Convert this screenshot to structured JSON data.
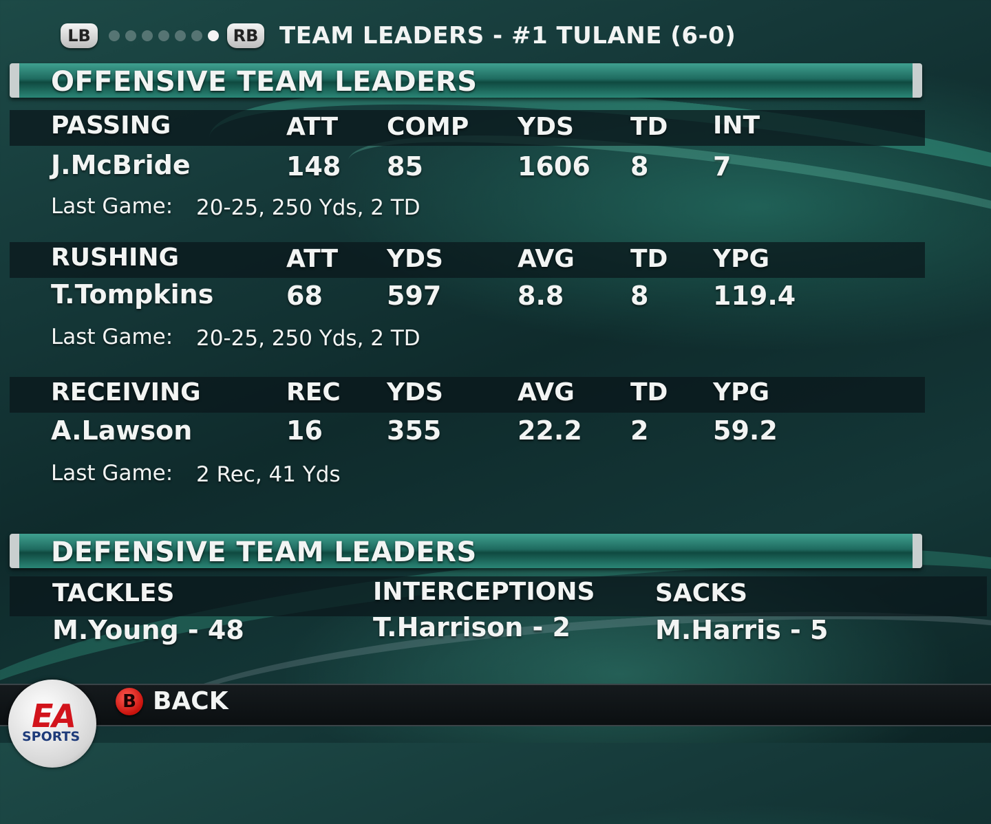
{
  "header": {
    "left_bumper": "LB",
    "right_bumper": "RB",
    "page_dots": 7,
    "active_dot": 7,
    "title": "TEAM LEADERS - #1 TULANE (6-0)"
  },
  "offense": {
    "title": "OFFENSIVE TEAM LEADERS",
    "passing": {
      "category": "PASSING",
      "columns": [
        "ATT",
        "COMP",
        "YDS",
        "TD",
        "INT"
      ],
      "player": "J.McBride",
      "values": [
        "148",
        "85",
        "1606",
        "8",
        "7"
      ],
      "last_label": "Last Game:",
      "last_value": "20-25, 250 Yds, 2 TD"
    },
    "rushing": {
      "category": "RUSHING",
      "columns": [
        "ATT",
        "YDS",
        "AVG",
        "TD",
        "YPG"
      ],
      "player": "T.Tompkins",
      "values": [
        "68",
        "597",
        "8.8",
        "8",
        "119.4"
      ],
      "last_label": "Last Game:",
      "last_value": "20-25, 250 Yds, 2 TD"
    },
    "receiving": {
      "category": "RECEIVING",
      "columns": [
        "REC",
        "YDS",
        "AVG",
        "TD",
        "YPG"
      ],
      "player": "A.Lawson",
      "values": [
        "16",
        "355",
        "22.2",
        "2",
        "59.2"
      ],
      "last_label": "Last Game:",
      "last_value": "2 Rec, 41 Yds"
    }
  },
  "defense": {
    "title": "DEFENSIVE TEAM LEADERS",
    "tackles": {
      "label": "TACKLES",
      "leader": "M.Young - 48"
    },
    "interceptions": {
      "label": "INTERCEPTIONS",
      "leader": "T.Harrison - 2"
    },
    "sacks": {
      "label": "SACKS",
      "leader": "M.Harris - 5"
    }
  },
  "footer": {
    "back_button": "B",
    "back_label": "BACK",
    "logo_mark": "EA",
    "logo_text": "SPORTS"
  },
  "colors": {
    "accent_teal": "#2a8676",
    "back_button_red": "#c8120c",
    "text": "#f2f4f3"
  }
}
